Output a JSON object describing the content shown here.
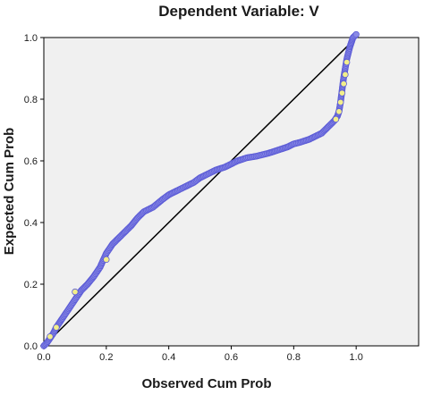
{
  "chart_data": {
    "type": "scatter",
    "title": "Dependent Variable: V",
    "xlabel": "Observed Cum Prob",
    "ylabel": "Expected Cum Prob",
    "xlim": [
      0,
      1.2
    ],
    "ylim": [
      0,
      1.0
    ],
    "x_ticks": [
      "0.0",
      "0.2",
      "0.4",
      "0.6",
      "0.8",
      "1.0"
    ],
    "y_ticks": [
      "0.0",
      "0.2",
      "0.4",
      "0.6",
      "0.8",
      "1.0"
    ],
    "grid": false,
    "legend": "none",
    "reference_line": {
      "x": [
        0,
        1
      ],
      "y": [
        0,
        1
      ]
    },
    "colors": {
      "plot_background": "#f0f0f0",
      "marker_fill": "#8a8ae6",
      "marker_stroke": "#5c5cd6",
      "marker_highlight": "#f2ee8a",
      "reference_line": "#000000"
    },
    "curve": {
      "x": [
        0.0,
        0.01,
        0.02,
        0.03,
        0.04,
        0.05,
        0.06,
        0.08,
        0.1,
        0.12,
        0.14,
        0.16,
        0.18,
        0.2,
        0.22,
        0.25,
        0.28,
        0.3,
        0.32,
        0.35,
        0.38,
        0.4,
        0.42,
        0.45,
        0.48,
        0.5,
        0.52,
        0.55,
        0.58,
        0.6,
        0.62,
        0.65,
        0.68,
        0.7,
        0.72,
        0.75,
        0.78,
        0.8,
        0.82,
        0.85,
        0.87,
        0.89,
        0.9,
        0.91,
        0.92,
        0.93,
        0.94,
        0.945,
        0.95,
        0.955,
        0.96,
        0.965,
        0.97,
        0.975,
        0.98,
        0.985,
        0.99,
        1.0
      ],
      "y": [
        0.0,
        0.01,
        0.025,
        0.04,
        0.06,
        0.075,
        0.09,
        0.12,
        0.15,
        0.18,
        0.2,
        0.225,
        0.255,
        0.3,
        0.33,
        0.36,
        0.39,
        0.415,
        0.435,
        0.45,
        0.475,
        0.49,
        0.5,
        0.515,
        0.53,
        0.545,
        0.555,
        0.57,
        0.58,
        0.59,
        0.6,
        0.61,
        0.615,
        0.62,
        0.625,
        0.635,
        0.645,
        0.655,
        0.66,
        0.67,
        0.68,
        0.69,
        0.7,
        0.71,
        0.72,
        0.73,
        0.745,
        0.76,
        0.79,
        0.83,
        0.87,
        0.9,
        0.93,
        0.95,
        0.97,
        0.985,
        1.0,
        1.01
      ]
    },
    "highlighted_points": {
      "x": [
        0.02,
        0.04,
        0.1,
        0.2,
        0.935,
        0.945,
        0.95,
        0.955,
        0.96,
        0.965,
        0.97
      ],
      "y": [
        0.03,
        0.06,
        0.175,
        0.28,
        0.735,
        0.76,
        0.79,
        0.82,
        0.85,
        0.88,
        0.92
      ]
    }
  }
}
